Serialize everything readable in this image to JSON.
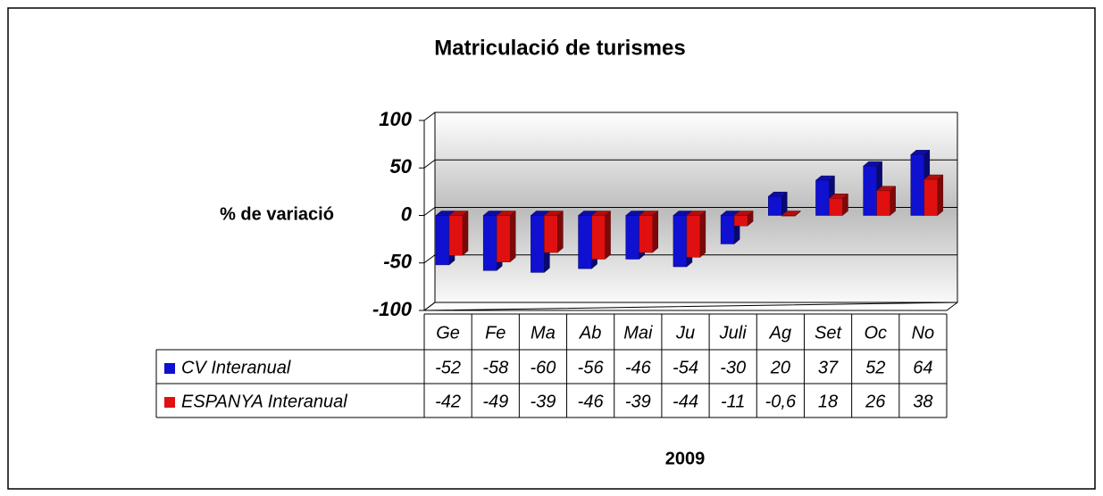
{
  "chart_data": {
    "type": "bar",
    "title": "Matriculació de turismes",
    "ylabel": "% de variació",
    "xlabel": "2009",
    "categories": [
      "Ge",
      "Fe",
      "Ma",
      "Ab",
      "Mai",
      "Ju",
      "Juli",
      "Ag",
      "Set",
      "Oc",
      "No"
    ],
    "series": [
      {
        "name": "CV Interanual",
        "color": "#1010d0",
        "values": [
          -52,
          -58,
          -60,
          -56,
          -46,
          -54,
          -30,
          20,
          37,
          52,
          64
        ],
        "value_labels": [
          "-52",
          "-58",
          "-60",
          "-56",
          "-46",
          "-54",
          "-30",
          "20",
          "37",
          "52",
          "64"
        ]
      },
      {
        "name": "ESPANYA Interanual",
        "color": "#e01010",
        "values": [
          -42,
          -49,
          -39,
          -46,
          -39,
          -44,
          -11,
          -0.6,
          18,
          26,
          38
        ],
        "value_labels": [
          "-42",
          "-49",
          "-39",
          "-46",
          "-39",
          "-44",
          "-11",
          "-0,6",
          "18",
          "26",
          "38"
        ]
      }
    ],
    "ylim": [
      -100,
      100
    ],
    "yticks": [
      -100,
      -50,
      0,
      50,
      100
    ],
    "grid": true
  }
}
